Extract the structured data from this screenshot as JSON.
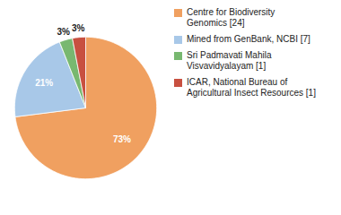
{
  "chart_data": {
    "type": "pie",
    "categories": [
      "Centre for Biodiversity\nGenomics [24]",
      "Mined from GenBank, NCBI [7]",
      "Sri Padmavati Mahila\nVisvavidyalayam [1]",
      "ICAR, National Bureau of\nAgricultural Insect Resources [1]"
    ],
    "values": [
      73,
      21,
      3,
      3
    ],
    "value_labels": [
      "73%",
      "21%",
      "3%",
      "3%"
    ],
    "colors": [
      "#f0a060",
      "#a8c8e8",
      "#78b870",
      "#c85040"
    ],
    "data_labels": true,
    "legend": "upper right"
  }
}
